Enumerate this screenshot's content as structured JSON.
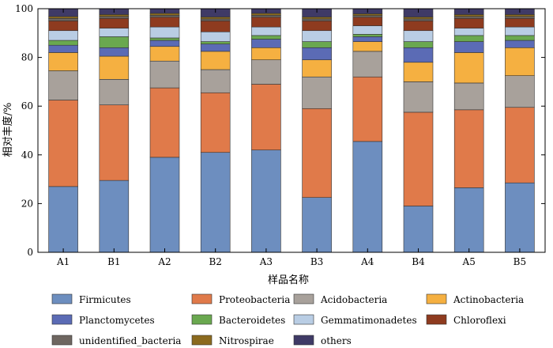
{
  "chart_data": {
    "type": "bar",
    "stacked": true,
    "title": "",
    "xlabel": "样品名称",
    "ylabel": "相对丰度/%",
    "ylim": [
      0,
      100
    ],
    "yticks": [
      0,
      20,
      40,
      60,
      80,
      100
    ],
    "grid": false,
    "legend_position": "bottom",
    "categories": [
      "A1",
      "B1",
      "A2",
      "B2",
      "A3",
      "B3",
      "A4",
      "B4",
      "A5",
      "B5"
    ],
    "series": [
      {
        "name": "Firmicutes",
        "color": "#6d8ebf",
        "values": [
          27,
          29.5,
          39,
          41,
          42,
          22.5,
          45.5,
          19,
          26.5,
          28.5
        ]
      },
      {
        "name": "Proteobacteria",
        "color": "#e07a4a",
        "values": [
          35.5,
          31,
          28.5,
          24.5,
          27,
          36.5,
          26.5,
          38.5,
          32,
          31
        ]
      },
      {
        "name": "Acidobacteria",
        "color": "#a8a19b",
        "values": [
          12,
          10.5,
          11,
          9.5,
          10,
          13,
          10.5,
          12.5,
          11,
          13
        ]
      },
      {
        "name": "Actinobacteria",
        "color": "#f5b041",
        "values": [
          7.5,
          9.5,
          6,
          7.5,
          5,
          7,
          4,
          8,
          12.5,
          11.5
        ]
      },
      {
        "name": "Planctomycetes",
        "color": "#5b6bb5",
        "values": [
          3,
          3.5,
          2.5,
          3,
          3.5,
          5,
          2,
          6,
          4.5,
          3
        ]
      },
      {
        "name": "Bacteroidetes",
        "color": "#6aa84f",
        "values": [
          2,
          4.5,
          1,
          1,
          1.5,
          2.5,
          1,
          2.5,
          2.5,
          2
        ]
      },
      {
        "name": "Gemmatimonadetes",
        "color": "#b9cde4",
        "values": [
          4,
          3.5,
          4.5,
          4,
          3.5,
          4.5,
          3.5,
          4.5,
          3,
          3.5
        ]
      },
      {
        "name": "Chloroflexi",
        "color": "#8e3b1f",
        "values": [
          4,
          4,
          4,
          4.5,
          4,
          4,
          3.5,
          4,
          4,
          3.5
        ]
      },
      {
        "name": "unidentified_bacteria",
        "color": "#6e6660",
        "values": [
          1,
          0.8,
          0.8,
          0.8,
          0.8,
          0.8,
          0.7,
          0.8,
          0.8,
          0.8
        ]
      },
      {
        "name": "Nitrospirae",
        "color": "#8b6a1e",
        "values": [
          0.8,
          0.8,
          0.8,
          0.8,
          0.8,
          0.8,
          0.7,
          0.8,
          0.8,
          0.8
        ]
      },
      {
        "name": "others",
        "color": "#3f3a66",
        "values": [
          3.2,
          2.4,
          1.9,
          3.4,
          1.9,
          3.4,
          2.1,
          3.4,
          2.4,
          2.4
        ]
      }
    ]
  }
}
